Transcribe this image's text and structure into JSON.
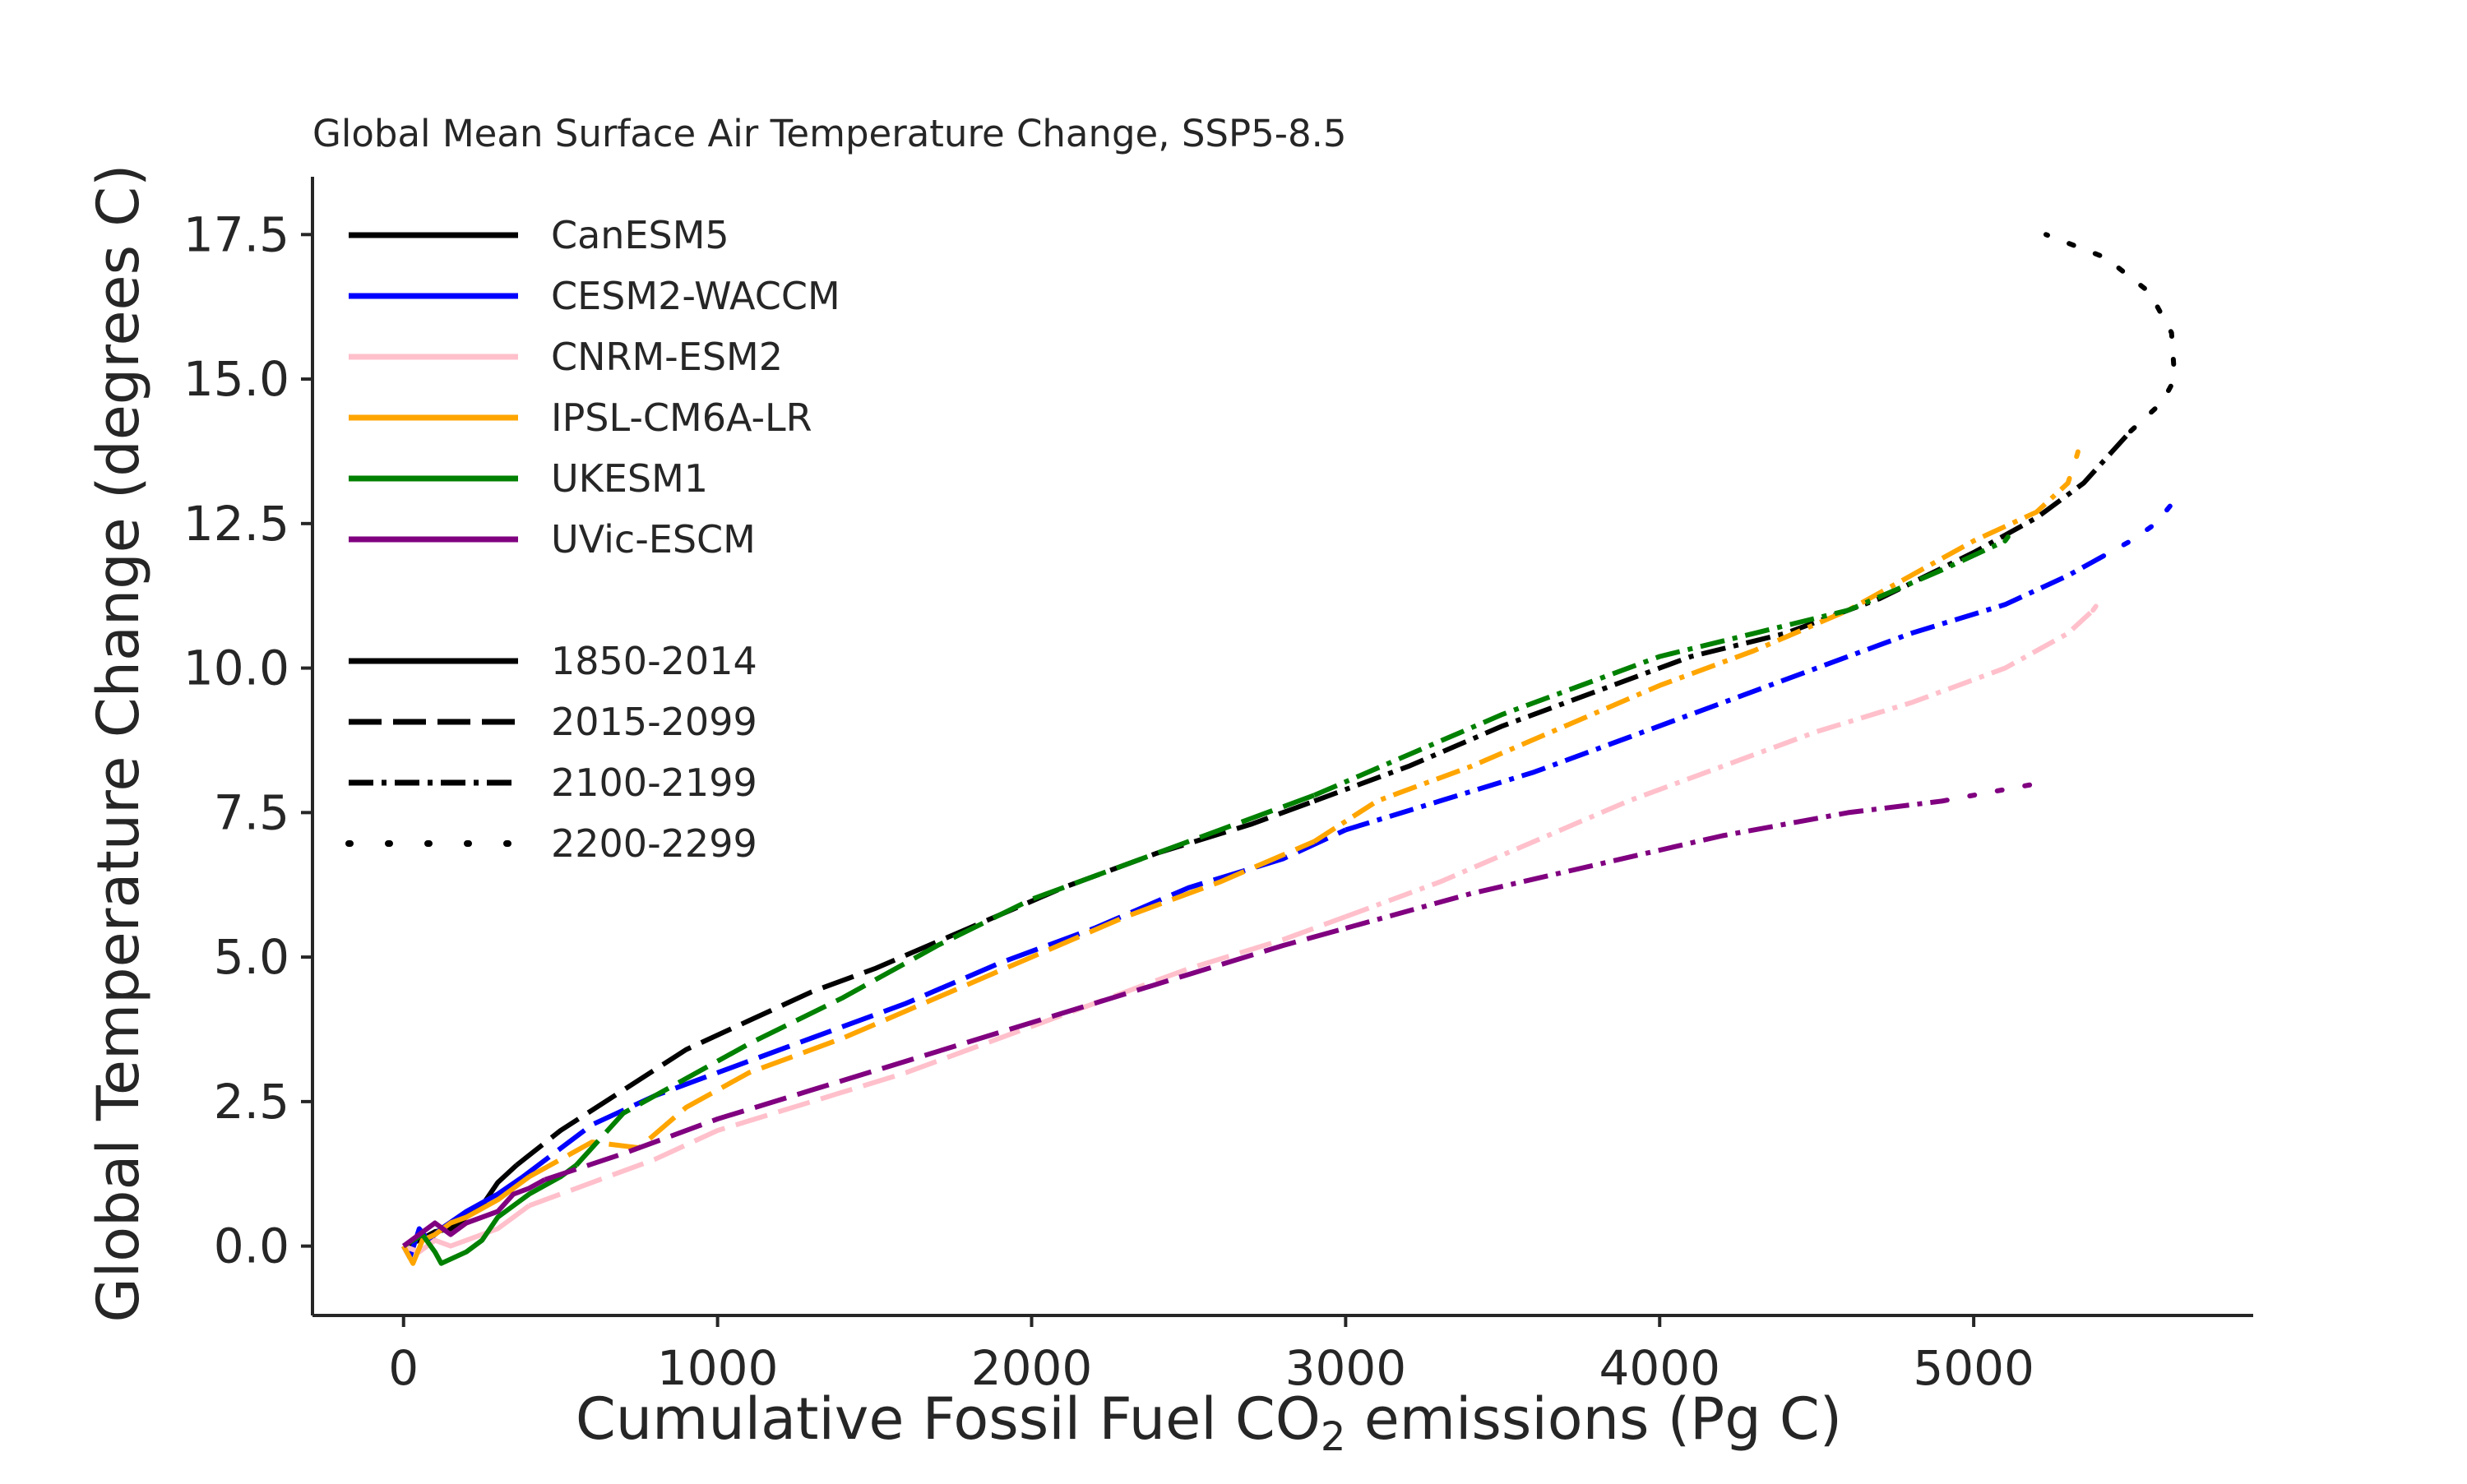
{
  "chart_data": {
    "type": "line",
    "title": "Global Mean Surface Air Temperature Change, SSP5-8.5",
    "xlabel": {
      "prefix": "Cumulative Fossil Fuel CO",
      "subscript": "2",
      "suffix": " emissions (Pg C)"
    },
    "ylabel": "Global Temperature Change (degrees C)",
    "xlim": [
      -290,
      5890
    ],
    "ylim": [
      -1.2,
      18.5
    ],
    "xticks": [
      0,
      1000,
      2000,
      3000,
      4000,
      5000
    ],
    "xtick_labels": [
      "0",
      "1000",
      "2000",
      "3000",
      "4000",
      "5000"
    ],
    "yticks": [
      0.0,
      2.5,
      5.0,
      7.5,
      10.0,
      12.5,
      15.0,
      17.5
    ],
    "ytick_labels": [
      "0.0",
      "2.5",
      "5.0",
      "7.5",
      "10.0",
      "12.5",
      "15.0",
      "17.5"
    ],
    "grid": false,
    "legend_position": "upper-left",
    "models": [
      {
        "name": "CanESM5",
        "color": "#000000"
      },
      {
        "name": "CESM2-WACCM",
        "color": "#0000ff"
      },
      {
        "name": "CNRM-ESM2",
        "color": "#ffc0cb"
      },
      {
        "name": "IPSL-CM6A-LR",
        "color": "#ffa500"
      },
      {
        "name": "UKESM1",
        "color": "#008000"
      },
      {
        "name": "UVic-ESCM",
        "color": "#800080"
      }
    ],
    "periods": [
      {
        "name": "1850-2014",
        "style": "solid"
      },
      {
        "name": "2015-2099",
        "style": "dashed"
      },
      {
        "name": "2100-2199",
        "style": "dashdot"
      },
      {
        "name": "2200-2299",
        "style": "dotted"
      }
    ],
    "series": [
      {
        "model": "CanESM5",
        "period": "1850-2014",
        "points": [
          [
            0,
            0
          ],
          [
            50,
            0.1
          ],
          [
            100,
            0.25
          ],
          [
            150,
            0.3
          ],
          [
            200,
            0.5
          ],
          [
            250,
            0.7
          ],
          [
            300,
            1.1
          ],
          [
            340,
            1.3
          ],
          [
            360,
            1.4
          ]
        ]
      },
      {
        "model": "CanESM5",
        "period": "2015-2099",
        "points": [
          [
            360,
            1.4
          ],
          [
            500,
            2.0
          ],
          [
            700,
            2.7
          ],
          [
            900,
            3.4
          ],
          [
            1100,
            3.9
          ],
          [
            1300,
            4.4
          ],
          [
            1500,
            4.8
          ],
          [
            1800,
            5.5
          ],
          [
            2100,
            6.2
          ],
          [
            2400,
            6.8
          ],
          [
            2700,
            7.3
          ],
          [
            2900,
            7.7
          ]
        ]
      },
      {
        "model": "CanESM5",
        "period": "2100-2199",
        "points": [
          [
            2900,
            7.7
          ],
          [
            3200,
            8.3
          ],
          [
            3500,
            9.0
          ],
          [
            3800,
            9.6
          ],
          [
            4100,
            10.2
          ],
          [
            4400,
            10.6
          ],
          [
            4700,
            11.2
          ],
          [
            5000,
            12.0
          ],
          [
            5200,
            12.6
          ],
          [
            5350,
            13.2
          ],
          [
            5450,
            13.8
          ],
          [
            5500,
            14.1
          ]
        ]
      },
      {
        "model": "CanESM5",
        "period": "2200-2299",
        "points": [
          [
            5500,
            14.1
          ],
          [
            5600,
            14.6
          ],
          [
            5640,
            15.0
          ],
          [
            5630,
            15.8
          ],
          [
            5560,
            16.5
          ],
          [
            5420,
            17.1
          ],
          [
            5230,
            17.5
          ]
        ]
      },
      {
        "model": "CESM2-WACCM",
        "period": "1850-2014",
        "points": [
          [
            0,
            0
          ],
          [
            20,
            -0.2
          ],
          [
            50,
            0.3
          ],
          [
            80,
            0.1
          ],
          [
            120,
            0.3
          ],
          [
            200,
            0.6
          ],
          [
            300,
            0.9
          ],
          [
            380,
            1.2
          ]
        ]
      },
      {
        "model": "CESM2-WACCM",
        "period": "2015-2099",
        "points": [
          [
            380,
            1.2
          ],
          [
            600,
            2.1
          ],
          [
            800,
            2.6
          ],
          [
            1000,
            3.0
          ],
          [
            1300,
            3.6
          ],
          [
            1600,
            4.2
          ],
          [
            1900,
            4.9
          ],
          [
            2200,
            5.5
          ],
          [
            2500,
            6.2
          ],
          [
            2800,
            6.7
          ],
          [
            3000,
            7.2
          ]
        ]
      },
      {
        "model": "CESM2-WACCM",
        "period": "2100-2199",
        "points": [
          [
            3000,
            7.2
          ],
          [
            3300,
            7.7
          ],
          [
            3600,
            8.2
          ],
          [
            3900,
            8.8
          ],
          [
            4200,
            9.4
          ],
          [
            4500,
            10.0
          ],
          [
            4800,
            10.6
          ],
          [
            5100,
            11.1
          ],
          [
            5300,
            11.6
          ],
          [
            5400,
            11.9
          ]
        ]
      },
      {
        "model": "CESM2-WACCM",
        "period": "2200-2299",
        "points": [
          [
            5400,
            11.9
          ],
          [
            5500,
            12.2
          ],
          [
            5580,
            12.5
          ],
          [
            5640,
            12.9
          ]
        ]
      },
      {
        "model": "CNRM-ESM2",
        "period": "1850-2014",
        "points": [
          [
            0,
            0
          ],
          [
            50,
            -0.1
          ],
          [
            100,
            0.1
          ],
          [
            150,
            0
          ],
          [
            200,
            0.1
          ],
          [
            250,
            0.2
          ],
          [
            300,
            0.3
          ],
          [
            350,
            0.5
          ],
          [
            400,
            0.7
          ]
        ]
      },
      {
        "model": "CNRM-ESM2",
        "period": "2015-2099",
        "points": [
          [
            400,
            0.7
          ],
          [
            600,
            1.1
          ],
          [
            800,
            1.5
          ],
          [
            1000,
            2.0
          ],
          [
            1300,
            2.5
          ],
          [
            1600,
            3.0
          ],
          [
            1900,
            3.6
          ],
          [
            2200,
            4.2
          ],
          [
            2500,
            4.8
          ],
          [
            2800,
            5.3
          ],
          [
            3000,
            5.7
          ]
        ]
      },
      {
        "model": "CNRM-ESM2",
        "period": "2100-2199",
        "points": [
          [
            3000,
            5.7
          ],
          [
            3300,
            6.3
          ],
          [
            3600,
            7.0
          ],
          [
            3900,
            7.7
          ],
          [
            4200,
            8.3
          ],
          [
            4500,
            8.9
          ],
          [
            4800,
            9.4
          ],
          [
            5100,
            10.0
          ],
          [
            5300,
            10.6
          ],
          [
            5380,
            11.0
          ]
        ]
      },
      {
        "model": "CNRM-ESM2",
        "period": "2200-2299",
        "points": [
          [
            5380,
            11.0
          ],
          [
            5420,
            11.3
          ]
        ]
      },
      {
        "model": "IPSL-CM6A-LR",
        "period": "1850-2014",
        "points": [
          [
            0,
            0
          ],
          [
            30,
            -0.3
          ],
          [
            60,
            0.1
          ],
          [
            100,
            0.2
          ],
          [
            150,
            0.4
          ],
          [
            200,
            0.5
          ],
          [
            300,
            0.8
          ],
          [
            400,
            1.2
          ]
        ]
      },
      {
        "model": "IPSL-CM6A-LR",
        "period": "2015-2099",
        "points": [
          [
            400,
            1.2
          ],
          [
            600,
            1.8
          ],
          [
            750,
            1.7
          ],
          [
            900,
            2.4
          ],
          [
            1100,
            3.0
          ],
          [
            1400,
            3.6
          ],
          [
            1700,
            4.3
          ],
          [
            2000,
            5.0
          ],
          [
            2300,
            5.7
          ],
          [
            2600,
            6.3
          ],
          [
            2900,
            7.0
          ]
        ]
      },
      {
        "model": "IPSL-CM6A-LR",
        "period": "2100-2199",
        "points": [
          [
            2900,
            7.0
          ],
          [
            3100,
            7.7
          ],
          [
            3400,
            8.3
          ],
          [
            3700,
            9.0
          ],
          [
            4000,
            9.7
          ],
          [
            4300,
            10.3
          ],
          [
            4600,
            11.0
          ],
          [
            4800,
            11.6
          ],
          [
            5000,
            12.2
          ],
          [
            5200,
            12.7
          ],
          [
            5300,
            13.2
          ]
        ]
      },
      {
        "model": "IPSL-CM6A-LR",
        "period": "2200-2299",
        "points": [
          [
            5300,
            13.2
          ],
          [
            5330,
            13.7
          ],
          [
            5350,
            14.1
          ]
        ]
      },
      {
        "model": "UKESM1",
        "period": "1850-2014",
        "points": [
          [
            0,
            0
          ],
          [
            60,
            0.2
          ],
          [
            100,
            -0.1
          ],
          [
            120,
            -0.3
          ],
          [
            200,
            -0.1
          ],
          [
            250,
            0.1
          ],
          [
            300,
            0.5
          ],
          [
            400,
            0.9
          ],
          [
            500,
            1.2
          ],
          [
            550,
            1.4
          ]
        ]
      },
      {
        "model": "UKESM1",
        "period": "2015-2099",
        "points": [
          [
            550,
            1.4
          ],
          [
            700,
            2.3
          ],
          [
            900,
            2.9
          ],
          [
            1100,
            3.5
          ],
          [
            1400,
            4.3
          ],
          [
            1700,
            5.2
          ],
          [
            2000,
            6.0
          ],
          [
            2300,
            6.6
          ],
          [
            2600,
            7.2
          ],
          [
            2900,
            7.8
          ]
        ]
      },
      {
        "model": "UKESM1",
        "period": "2100-2199",
        "points": [
          [
            2900,
            7.8
          ],
          [
            3200,
            8.5
          ],
          [
            3500,
            9.2
          ],
          [
            3800,
            9.8
          ],
          [
            4000,
            10.2
          ],
          [
            4300,
            10.6
          ],
          [
            4600,
            11.0
          ],
          [
            4900,
            11.7
          ],
          [
            5100,
            12.2
          ]
        ]
      },
      {
        "model": "UKESM1",
        "period": "2200-2299",
        "points": [
          [
            5100,
            12.2
          ],
          [
            5140,
            12.5
          ]
        ]
      },
      {
        "model": "UVic-ESCM",
        "period": "1850-2014",
        "points": [
          [
            0,
            0
          ],
          [
            50,
            0.2
          ],
          [
            100,
            0.4
          ],
          [
            150,
            0.2
          ],
          [
            200,
            0.4
          ],
          [
            250,
            0.5
          ],
          [
            300,
            0.6
          ],
          [
            350,
            0.9
          ],
          [
            400,
            1.0
          ],
          [
            450,
            1.15
          ]
        ]
      },
      {
        "model": "UVic-ESCM",
        "period": "2015-2099",
        "points": [
          [
            450,
            1.15
          ],
          [
            700,
            1.6
          ],
          [
            1000,
            2.2
          ],
          [
            1300,
            2.7
          ],
          [
            1600,
            3.2
          ],
          [
            1900,
            3.7
          ],
          [
            2200,
            4.2
          ],
          [
            2500,
            4.7
          ],
          [
            2800,
            5.2
          ],
          [
            3000,
            5.5
          ]
        ]
      },
      {
        "model": "UVic-ESCM",
        "period": "2100-2199",
        "points": [
          [
            3000,
            5.5
          ],
          [
            3400,
            6.1
          ],
          [
            3800,
            6.6
          ],
          [
            4200,
            7.1
          ],
          [
            4600,
            7.5
          ],
          [
            4900,
            7.7
          ]
        ]
      },
      {
        "model": "UVic-ESCM",
        "period": "2200-2299",
        "points": [
          [
            4900,
            7.7
          ],
          [
            5050,
            7.85
          ],
          [
            5200,
            8.0
          ]
        ]
      }
    ]
  }
}
